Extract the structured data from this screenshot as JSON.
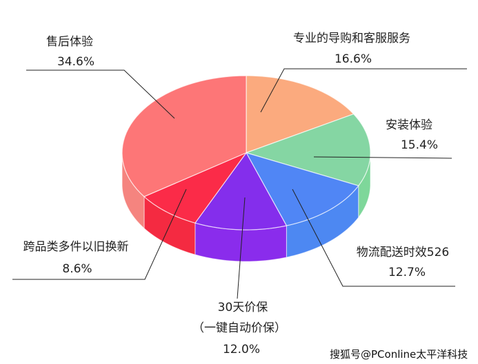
{
  "chart_data": {
    "type": "pie",
    "style": "3d",
    "title": "",
    "slices": [
      {
        "label": "专业的导购和客服服务",
        "value": 16.6,
        "value_label": "16.6%",
        "color": "#fbaa7e",
        "side_color": "#f7a27a"
      },
      {
        "label": "安装体验",
        "value": 15.4,
        "value_label": "15.4%",
        "color": "#85d6a3",
        "side_color": "#7ed79a"
      },
      {
        "label": "物流配送时效526",
        "value": 12.7,
        "value_label": "12.7%",
        "color": "#5086f5",
        "side_color": "#4d88f2"
      },
      {
        "label": "30天价保",
        "label2": "（一键自动价保）",
        "value": 12.0,
        "value_label": "12.0%",
        "color": "#842eec",
        "side_color": "#8a2cec"
      },
      {
        "label": "跨品类多件以旧换新",
        "value": 8.6,
        "value_label": "8.6%",
        "color": "#fb2b48",
        "side_color": "#f42a41"
      },
      {
        "label": "售后体验",
        "value": 34.6,
        "value_label": "34.6%",
        "color": "#fd7677",
        "side_color": "#f5847f"
      }
    ]
  },
  "watermark": "搜狐号@PConline太平洋科技"
}
